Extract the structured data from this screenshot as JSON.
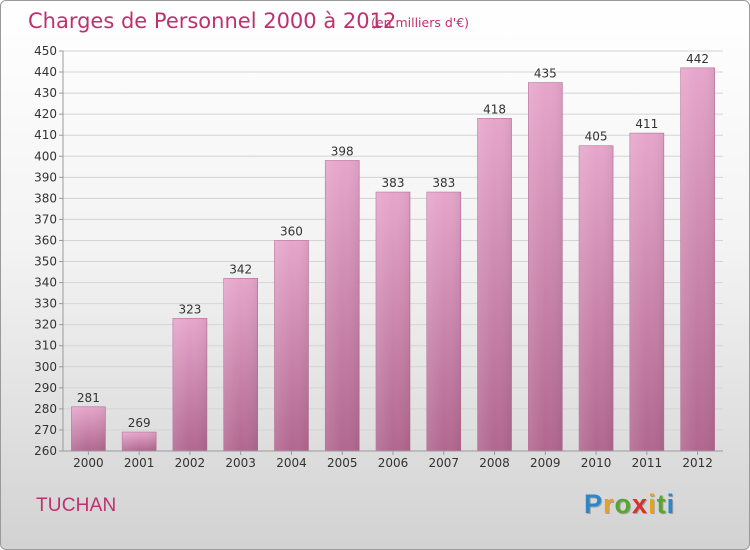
{
  "chart_data": {
    "type": "bar",
    "title": "Charges de Personnel 2000 à 2012",
    "subtitle": "(en milliers d'€)",
    "categories": [
      "2000",
      "2001",
      "2002",
      "2003",
      "2004",
      "2005",
      "2006",
      "2007",
      "2008",
      "2009",
      "2010",
      "2011",
      "2012"
    ],
    "values": [
      281,
      269,
      323,
      342,
      360,
      398,
      383,
      383,
      418,
      435,
      405,
      411,
      442
    ],
    "ylim": [
      260,
      450
    ],
    "ytick_step": 10,
    "grid": true,
    "legend": "none",
    "bar_color": "#cf7fac"
  },
  "commune": "TUCHAN",
  "brand": {
    "letters": [
      "P",
      "r",
      "o",
      "x",
      "i",
      "t",
      "i"
    ],
    "colors": [
      "#2e86c8",
      "#e8a020",
      "#58a630",
      "#d8302a",
      "#e8a020",
      "#58a630",
      "#2e86c8"
    ]
  }
}
